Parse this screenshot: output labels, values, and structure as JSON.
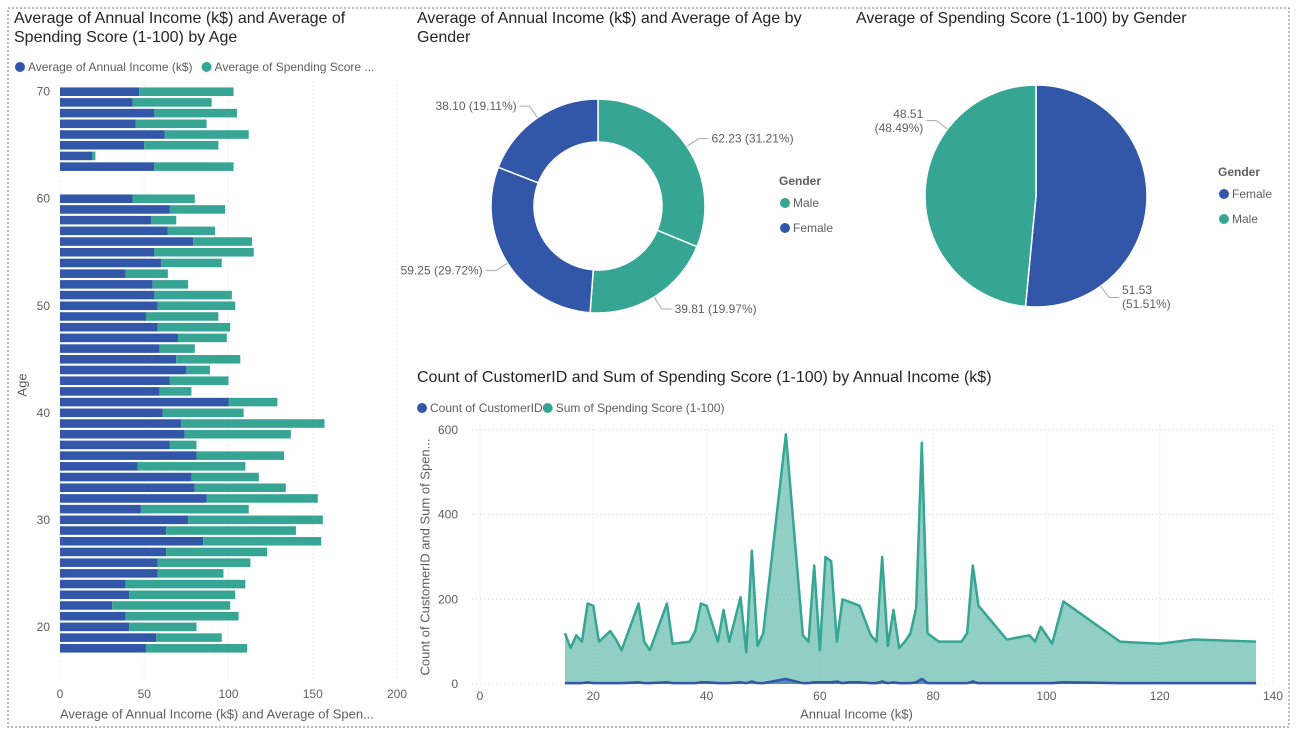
{
  "chart_data": [
    {
      "type": "bar",
      "orientation": "horizontal",
      "stacked": true,
      "title": "Average of Annual Income (k$) and Average of Spending Score (1-100) by Age",
      "xlabel": "Average of Annual Income (k$) and Average of Spen...",
      "ylabel": "Age",
      "y": [
        70,
        69,
        68,
        67,
        66,
        65,
        64,
        63,
        60,
        59,
        58,
        57,
        56,
        55,
        54,
        53,
        52,
        51,
        50,
        49,
        48,
        47,
        46,
        45,
        44,
        43,
        42,
        41,
        40,
        39,
        38,
        37,
        36,
        35,
        34,
        33,
        32,
        31,
        30,
        29,
        28,
        27,
        26,
        25,
        24,
        23,
        22,
        21,
        20,
        19,
        18
      ],
      "series": [
        {
          "name": "Average of Annual Income (k$)",
          "color": "#3256a8",
          "values": [
            47,
            43,
            56,
            45,
            62,
            50,
            19,
            56,
            43,
            65,
            54,
            64,
            79,
            56,
            60,
            39,
            55,
            56,
            58,
            51,
            58,
            70,
            59,
            69,
            75,
            65,
            59,
            100,
            61,
            72,
            74,
            65,
            81,
            46,
            78,
            80,
            87,
            48,
            76,
            63,
            85,
            63,
            58,
            58,
            39,
            41,
            31,
            39,
            41,
            57,
            51
          ]
        },
        {
          "name": "Average of Spending Score ...",
          "color": "#37a593",
          "values": [
            56,
            47,
            49,
            42,
            50,
            44,
            2,
            47,
            37,
            33,
            15,
            28,
            35,
            59,
            36,
            25,
            21,
            46,
            46,
            43,
            43,
            29,
            21,
            38,
            14,
            35,
            19,
            29,
            48,
            85,
            63,
            16,
            52,
            64,
            40,
            54,
            66,
            64,
            80,
            77,
            70,
            60,
            55,
            39,
            71,
            63,
            70,
            67,
            40,
            39,
            60
          ]
        }
      ],
      "xlim": [
        0,
        200
      ],
      "xticks": [
        0,
        50,
        100,
        150,
        200
      ],
      "ylim": [
        17,
        71
      ],
      "yticks": [
        20,
        30,
        40,
        50,
        60,
        70
      ],
      "grid": true
    },
    {
      "type": "donut",
      "title": "Average of Annual Income (k$) and Average of Age by Gender",
      "legend_title": "Gender",
      "series": [
        {
          "name": "Male",
          "color": "#37a593",
          "values": [
            62.23,
            39.81
          ],
          "value_labels": [
            "62.23 (31.21%)",
            "39.81 (19.97%)"
          ]
        },
        {
          "name": "Female",
          "color": "#3256a8",
          "values": [
            59.25,
            38.1
          ],
          "value_labels": [
            "59.25 (29.72%)",
            "38.10 (19.11%)"
          ]
        }
      ]
    },
    {
      "type": "pie",
      "title": "Average of Spending Score (1-100) by Gender",
      "legend_title": "Gender",
      "categories": [
        "Female",
        "Male"
      ],
      "values": [
        51.53,
        48.51
      ],
      "value_labels": [
        "51.53 (51.51%)",
        "48.51 (48.49%)"
      ],
      "colors": [
        "#3256a8",
        "#37a593"
      ]
    },
    {
      "type": "area",
      "title": "Count of CustomerID and Sum of Spending Score (1-100) by Annual Income (k$)",
      "xlabel": "Annual Income (k$)",
      "ylabel": "Count of CustomerID and Sum of Spen...",
      "x": [
        15,
        16,
        17,
        18,
        19,
        20,
        21,
        23,
        24,
        25,
        28,
        29,
        30,
        33,
        34,
        37,
        38,
        39,
        40,
        42,
        43,
        44,
        46,
        47,
        48,
        49,
        50,
        54,
        57,
        58,
        59,
        60,
        61,
        62,
        63,
        64,
        65,
        67,
        69,
        70,
        71,
        72,
        73,
        74,
        75,
        76,
        77,
        78,
        79,
        81,
        85,
        86,
        87,
        88,
        93,
        97,
        98,
        99,
        101,
        103,
        113,
        120,
        126,
        137
      ],
      "series": [
        {
          "name": "Count of CustomerID",
          "color": "#3256a8",
          "values": [
            2,
            2,
            2,
            2,
            4,
            2,
            2,
            2,
            2,
            2,
            4,
            2,
            2,
            4,
            2,
            2,
            2,
            4,
            4,
            2,
            2,
            2,
            4,
            2,
            6,
            2,
            2,
            12,
            2,
            2,
            4,
            4,
            4,
            4,
            6,
            2,
            4,
            4,
            2,
            2,
            6,
            2,
            4,
            2,
            2,
            2,
            4,
            12,
            2,
            2,
            2,
            2,
            6,
            2,
            2,
            2,
            2,
            2,
            2,
            4,
            2,
            2,
            2,
            2
          ]
        },
        {
          "name": "Sum of Spending Score (1-100)",
          "color": "#37a593",
          "values": [
            120,
            85,
            115,
            100,
            190,
            185,
            100,
            125,
            105,
            80,
            190,
            100,
            80,
            190,
            95,
            100,
            125,
            190,
            185,
            100,
            175,
            100,
            205,
            75,
            315,
            90,
            120,
            590,
            115,
            100,
            280,
            80,
            300,
            290,
            100,
            200,
            195,
            185,
            115,
            100,
            300,
            90,
            175,
            85,
            100,
            120,
            180,
            570,
            120,
            100,
            100,
            120,
            280,
            185,
            105,
            115,
            100,
            135,
            95,
            195,
            100,
            95,
            105,
            100
          ]
        }
      ],
      "xlim": [
        0,
        140
      ],
      "xticks": [
        0,
        20,
        40,
        60,
        80,
        100,
        120,
        140
      ],
      "ylim": [
        0,
        600
      ],
      "yticks": [
        0,
        200,
        400,
        600
      ],
      "grid": true
    }
  ]
}
